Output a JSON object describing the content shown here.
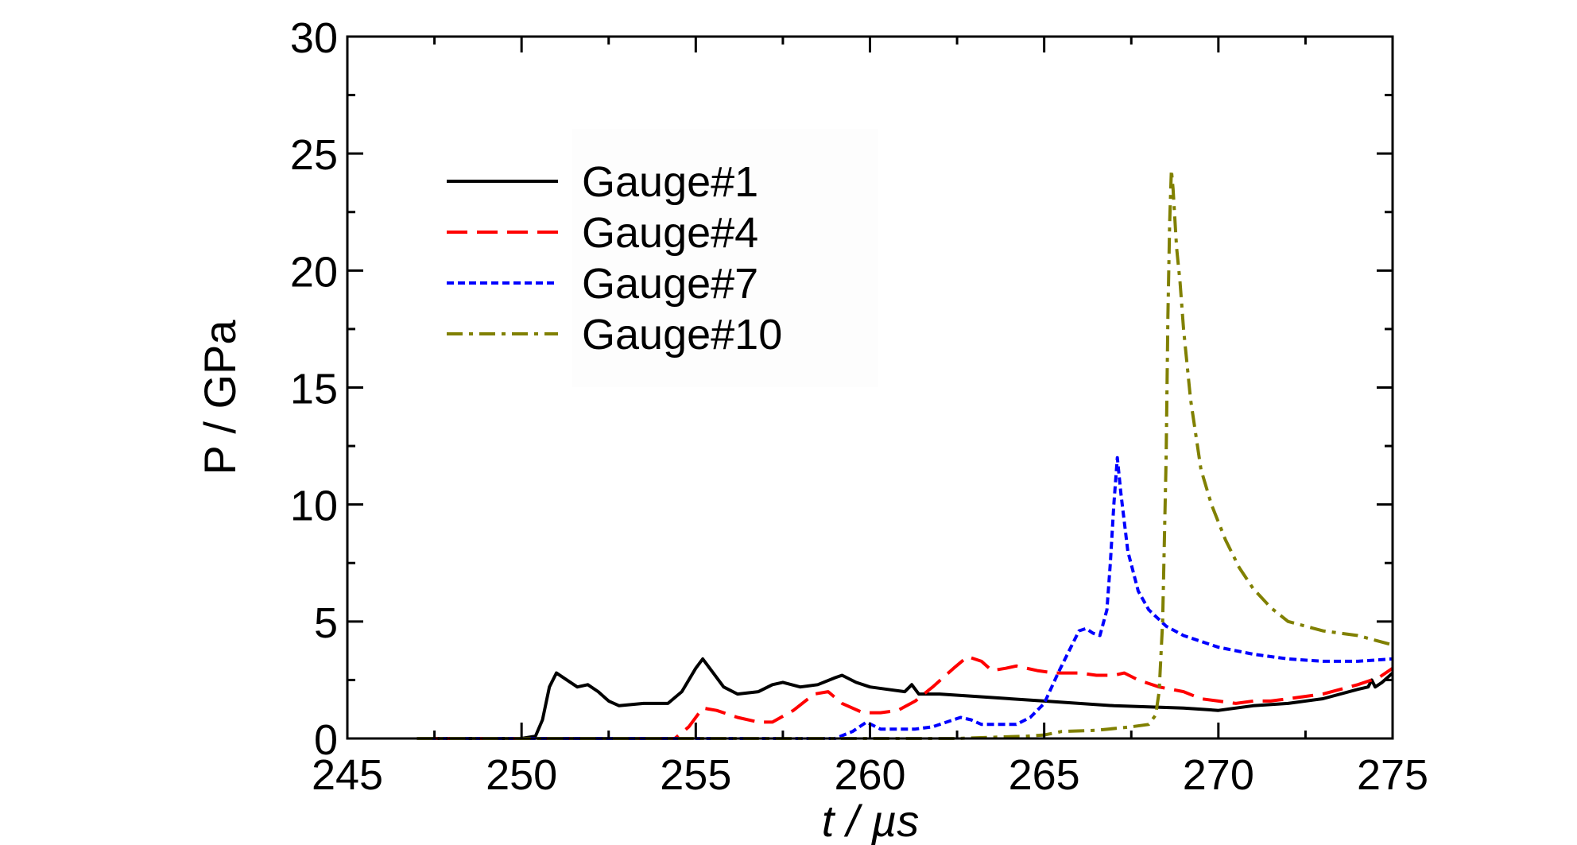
{
  "chart_data": {
    "type": "line",
    "title": "",
    "xlabel": "t / µs",
    "ylabel": "P / GPa",
    "xlim": [
      245,
      275
    ],
    "ylim": [
      0,
      30
    ],
    "x_ticks": [
      "245",
      "250",
      "255",
      "260",
      "265",
      "270",
      "275"
    ],
    "y_ticks": [
      "0",
      "5",
      "10",
      "15",
      "20",
      "25",
      "30"
    ],
    "grid": false,
    "legend_position": "upper-left",
    "series": [
      {
        "name": "Gauge#1",
        "color": "#000000",
        "dash": "solid",
        "points": [
          [
            247,
            0
          ],
          [
            250,
            0
          ],
          [
            250.4,
            0.1
          ],
          [
            250.6,
            0.8
          ],
          [
            250.8,
            2.2
          ],
          [
            251.0,
            2.8
          ],
          [
            251.3,
            2.5
          ],
          [
            251.6,
            2.2
          ],
          [
            251.9,
            2.3
          ],
          [
            252.2,
            2.0
          ],
          [
            252.5,
            1.6
          ],
          [
            252.8,
            1.4
          ],
          [
            253.5,
            1.5
          ],
          [
            254.2,
            1.5
          ],
          [
            254.6,
            2.0
          ],
          [
            255.0,
            3.0
          ],
          [
            255.2,
            3.4
          ],
          [
            255.5,
            2.8
          ],
          [
            255.8,
            2.2
          ],
          [
            256.2,
            1.9
          ],
          [
            256.8,
            2.0
          ],
          [
            257.2,
            2.3
          ],
          [
            257.5,
            2.4
          ],
          [
            258.0,
            2.2
          ],
          [
            258.5,
            2.3
          ],
          [
            259.0,
            2.6
          ],
          [
            259.2,
            2.7
          ],
          [
            259.6,
            2.4
          ],
          [
            260.0,
            2.2
          ],
          [
            260.5,
            2.1
          ],
          [
            261.0,
            2.0
          ],
          [
            261.2,
            2.3
          ],
          [
            261.4,
            1.9
          ],
          [
            262.0,
            1.9
          ],
          [
            263.0,
            1.8
          ],
          [
            265.0,
            1.6
          ],
          [
            267.0,
            1.4
          ],
          [
            269.0,
            1.3
          ],
          [
            270.0,
            1.2
          ],
          [
            271.0,
            1.4
          ],
          [
            272.0,
            1.5
          ],
          [
            273.0,
            1.7
          ],
          [
            274.0,
            2.1
          ],
          [
            274.3,
            2.2
          ],
          [
            274.4,
            2.5
          ],
          [
            274.5,
            2.2
          ],
          [
            274.7,
            2.4
          ],
          [
            275.0,
            2.8
          ]
        ]
      },
      {
        "name": "Gauge#4",
        "color": "#ff0000",
        "dash": "long-dash",
        "points": [
          [
            247,
            0
          ],
          [
            254.4,
            0
          ],
          [
            254.8,
            0.5
          ],
          [
            255.2,
            1.3
          ],
          [
            255.6,
            1.2
          ],
          [
            256.2,
            0.9
          ],
          [
            256.8,
            0.7
          ],
          [
            257.2,
            0.7
          ],
          [
            257.8,
            1.2
          ],
          [
            258.4,
            1.9
          ],
          [
            258.8,
            2.0
          ],
          [
            259.2,
            1.5
          ],
          [
            259.8,
            1.1
          ],
          [
            260.3,
            1.1
          ],
          [
            260.8,
            1.2
          ],
          [
            261.3,
            1.6
          ],
          [
            261.8,
            2.2
          ],
          [
            262.4,
            3.0
          ],
          [
            262.8,
            3.5
          ],
          [
            263.2,
            3.3
          ],
          [
            263.5,
            2.9
          ],
          [
            263.9,
            3.0
          ],
          [
            264.2,
            3.1
          ],
          [
            264.8,
            2.9
          ],
          [
            265.3,
            2.8
          ],
          [
            266.0,
            2.8
          ],
          [
            266.5,
            2.7
          ],
          [
            267.0,
            2.7
          ],
          [
            267.3,
            2.8
          ],
          [
            267.7,
            2.5
          ],
          [
            268.3,
            2.2
          ],
          [
            269.0,
            2.0
          ],
          [
            269.5,
            1.7
          ],
          [
            270.0,
            1.6
          ],
          [
            270.5,
            1.5
          ],
          [
            271.0,
            1.6
          ],
          [
            271.5,
            1.6
          ],
          [
            272.0,
            1.7
          ],
          [
            273.0,
            1.9
          ],
          [
            274.0,
            2.3
          ],
          [
            274.6,
            2.6
          ],
          [
            275.0,
            3.0
          ]
        ]
      },
      {
        "name": "Gauge#7",
        "color": "#0000ff",
        "dash": "short-dash",
        "points": [
          [
            247,
            0
          ],
          [
            259,
            0
          ],
          [
            259.5,
            0.3
          ],
          [
            259.9,
            0.7
          ],
          [
            260.3,
            0.4
          ],
          [
            260.8,
            0.4
          ],
          [
            261.3,
            0.4
          ],
          [
            261.8,
            0.5
          ],
          [
            262.2,
            0.7
          ],
          [
            262.6,
            0.9
          ],
          [
            262.9,
            0.8
          ],
          [
            263.2,
            0.6
          ],
          [
            263.8,
            0.6
          ],
          [
            264.2,
            0.6
          ],
          [
            264.6,
            0.9
          ],
          [
            265.0,
            1.5
          ],
          [
            265.4,
            2.8
          ],
          [
            265.8,
            4.0
          ],
          [
            266.0,
            4.6
          ],
          [
            266.2,
            4.7
          ],
          [
            266.4,
            4.5
          ],
          [
            266.6,
            4.4
          ],
          [
            266.8,
            5.5
          ],
          [
            266.9,
            7.5
          ],
          [
            267.0,
            10.0
          ],
          [
            267.1,
            12.0
          ],
          [
            267.2,
            10.5
          ],
          [
            267.4,
            8.0
          ],
          [
            267.7,
            6.3
          ],
          [
            268.0,
            5.5
          ],
          [
            268.5,
            4.8
          ],
          [
            269.0,
            4.4
          ],
          [
            270.0,
            3.9
          ],
          [
            271.0,
            3.6
          ],
          [
            272.0,
            3.4
          ],
          [
            273.0,
            3.3
          ],
          [
            274.0,
            3.3
          ],
          [
            275.0,
            3.4
          ]
        ]
      },
      {
        "name": "Gauge#10",
        "color": "#808000",
        "dash": "dash-dot",
        "points": [
          [
            247,
            0
          ],
          [
            262.5,
            0
          ],
          [
            263.5,
            0.05
          ],
          [
            264.5,
            0.1
          ],
          [
            265.0,
            0.15
          ],
          [
            265.5,
            0.3
          ],
          [
            266.5,
            0.35
          ],
          [
            267.5,
            0.5
          ],
          [
            268.0,
            0.6
          ],
          [
            268.2,
            1.0
          ],
          [
            268.3,
            2.0
          ],
          [
            268.4,
            5.0
          ],
          [
            268.5,
            12.0
          ],
          [
            268.55,
            18.0
          ],
          [
            268.6,
            22.0
          ],
          [
            268.65,
            24.3
          ],
          [
            268.7,
            23.5
          ],
          [
            268.8,
            21.0
          ],
          [
            268.9,
            19.5
          ],
          [
            269.0,
            17.5
          ],
          [
            269.2,
            14.5
          ],
          [
            269.5,
            11.5
          ],
          [
            269.8,
            10.0
          ],
          [
            270.2,
            8.5
          ],
          [
            270.6,
            7.3
          ],
          [
            271.0,
            6.4
          ],
          [
            271.5,
            5.6
          ],
          [
            272.0,
            5.0
          ],
          [
            272.5,
            4.8
          ],
          [
            273.0,
            4.6
          ],
          [
            274.0,
            4.4
          ],
          [
            274.5,
            4.2
          ],
          [
            275.0,
            4.0
          ]
        ]
      }
    ]
  }
}
